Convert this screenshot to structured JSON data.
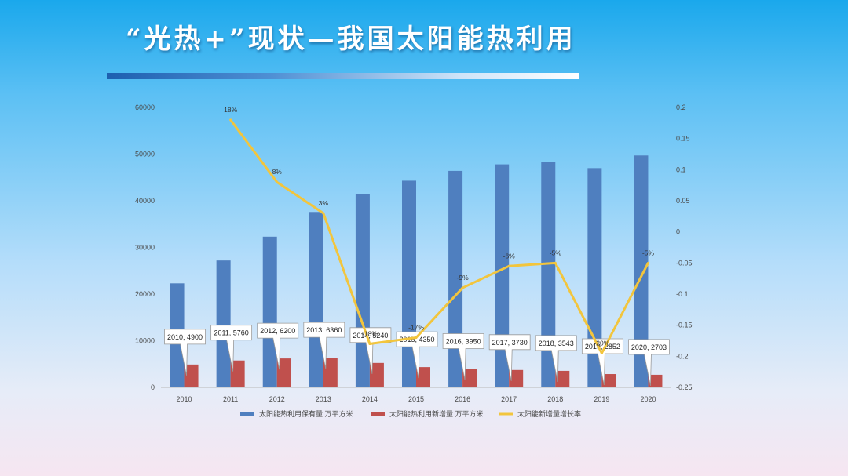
{
  "title": "“光热+”现状—我国太阳能热利用",
  "chart_data": {
    "type": "bar",
    "categories": [
      "2010",
      "2011",
      "2012",
      "2013",
      "2014",
      "2015",
      "2016",
      "2017",
      "2018",
      "2019",
      "2020"
    ],
    "series": [
      {
        "name": "太阳能热利用保有量 万平方米",
        "type": "bar",
        "axis": "left",
        "color": "#4f7fbf",
        "values": [
          22300,
          27200,
          32300,
          37600,
          41400,
          44300,
          46400,
          47800,
          48300,
          47000,
          49700
        ]
      },
      {
        "name": "太阳能热利用新增量 万平方米",
        "type": "bar",
        "axis": "left",
        "color": "#c0504d",
        "values": [
          4900,
          5760,
          6200,
          6360,
          5240,
          4350,
          3950,
          3730,
          3543,
          2852,
          2703
        ]
      },
      {
        "name": "太阳能新增量增长率",
        "type": "line",
        "axis": "right",
        "color": "#f2c53d",
        "values": [
          null,
          0.18,
          0.08,
          0.03,
          -0.18,
          -0.17,
          -0.09,
          -0.055,
          -0.05,
          -0.195,
          -0.05
        ]
      }
    ],
    "rate_labels": [
      "",
      "18%",
      "8%",
      "3%",
      "-18%",
      "-17%",
      "-9%",
      "-6%",
      "-5%",
      "-20%",
      "-5%"
    ],
    "callouts": [
      "2010, 4900",
      "2011, 5760",
      "2012, 6200",
      "2013, 6360",
      "2014, 5240",
      "2015, 4350",
      "2016, 3950",
      "2017, 3730",
      "2018, 3543",
      "2019, 2852",
      "2020, 2703"
    ],
    "y_left": {
      "min": 0,
      "max": 60000,
      "ticks": [
        "0",
        "10000",
        "20000",
        "30000",
        "40000",
        "50000",
        "60000"
      ]
    },
    "y_right": {
      "min": -0.25,
      "max": 0.2,
      "ticks": [
        "-0.25",
        "-0.2",
        "-0.15",
        "-0.1",
        "-0.05",
        "0",
        "0.05",
        "0.1",
        "0.15",
        "0.2"
      ]
    },
    "legend_position": "bottom",
    "grid": false
  }
}
